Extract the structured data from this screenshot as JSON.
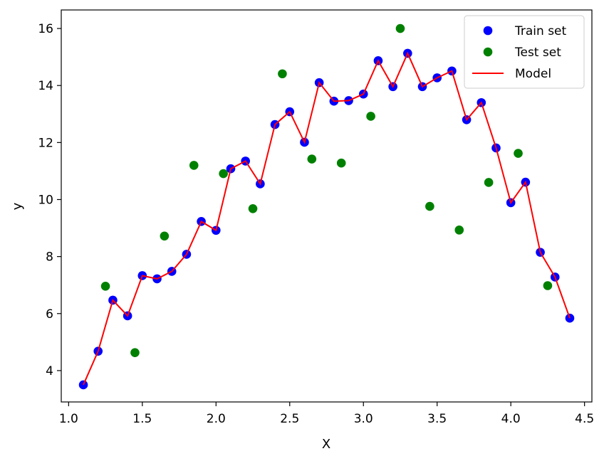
{
  "chart_data": {
    "type": "scatter",
    "title": "",
    "xlabel": "X",
    "ylabel": "y",
    "xlim": [
      0.95,
      4.55
    ],
    "ylim": [
      2.9,
      16.65
    ],
    "xticks": [
      1.0,
      1.5,
      2.0,
      2.5,
      3.0,
      3.5,
      4.0,
      4.5
    ],
    "xtick_labels": [
      "1.0",
      "1.5",
      "2.0",
      "2.5",
      "3.0",
      "3.5",
      "4.0",
      "4.5"
    ],
    "yticks": [
      4,
      6,
      8,
      10,
      12,
      14,
      16
    ],
    "ytick_labels": [
      "4",
      "6",
      "8",
      "10",
      "12",
      "14",
      "16"
    ],
    "grid": false,
    "legend_position": "top-right",
    "series": [
      {
        "name": "Train set",
        "kind": "scatter",
        "color": "#0000ff",
        "x": [
          1.1,
          1.2,
          1.3,
          1.4,
          1.5,
          1.6,
          1.7,
          1.8,
          1.9,
          2.0,
          2.1,
          2.2,
          2.3,
          2.4,
          2.5,
          2.6,
          2.7,
          2.8,
          2.9,
          3.0,
          3.1,
          3.2,
          3.3,
          3.4,
          3.5,
          3.6,
          3.7,
          3.8,
          3.9,
          4.0,
          4.1,
          4.2,
          4.3,
          4.4
        ],
        "y": [
          3.5,
          4.68,
          6.47,
          5.92,
          7.33,
          7.22,
          7.48,
          8.08,
          9.23,
          8.92,
          11.08,
          11.35,
          10.55,
          12.63,
          13.08,
          12.01,
          14.1,
          13.45,
          13.47,
          13.7,
          14.87,
          13.96,
          15.13,
          13.96,
          14.27,
          14.51,
          12.8,
          13.4,
          11.81,
          9.89,
          10.61,
          8.15,
          7.28,
          5.84
        ]
      },
      {
        "name": "Test set",
        "kind": "scatter",
        "color": "#008000",
        "x": [
          1.25,
          1.45,
          1.65,
          1.85,
          2.05,
          2.25,
          2.45,
          2.65,
          2.85,
          3.05,
          3.25,
          3.45,
          3.65,
          3.85,
          4.05,
          4.25
        ],
        "y": [
          6.96,
          4.63,
          8.72,
          11.2,
          10.91,
          9.68,
          14.41,
          11.42,
          11.28,
          12.92,
          16.0,
          9.76,
          8.93,
          10.6,
          11.62,
          6.98
        ]
      },
      {
        "name": "Model",
        "kind": "line",
        "color": "#ff0000",
        "x": [
          1.1,
          1.2,
          1.3,
          1.4,
          1.5,
          1.6,
          1.7,
          1.8,
          1.9,
          2.0,
          2.1,
          2.2,
          2.3,
          2.4,
          2.5,
          2.6,
          2.7,
          2.8,
          2.9,
          3.0,
          3.1,
          3.2,
          3.3,
          3.4,
          3.5,
          3.6,
          3.7,
          3.8,
          3.9,
          4.0,
          4.1,
          4.2,
          4.3,
          4.4
        ],
        "y": [
          3.5,
          4.68,
          6.47,
          5.92,
          7.33,
          7.22,
          7.48,
          8.08,
          9.23,
          8.92,
          11.08,
          11.35,
          10.55,
          12.63,
          13.08,
          12.01,
          14.1,
          13.45,
          13.47,
          13.7,
          14.87,
          13.96,
          15.13,
          13.96,
          14.27,
          14.51,
          12.8,
          13.4,
          11.81,
          9.89,
          10.61,
          8.15,
          7.28,
          5.84
        ]
      }
    ]
  }
}
